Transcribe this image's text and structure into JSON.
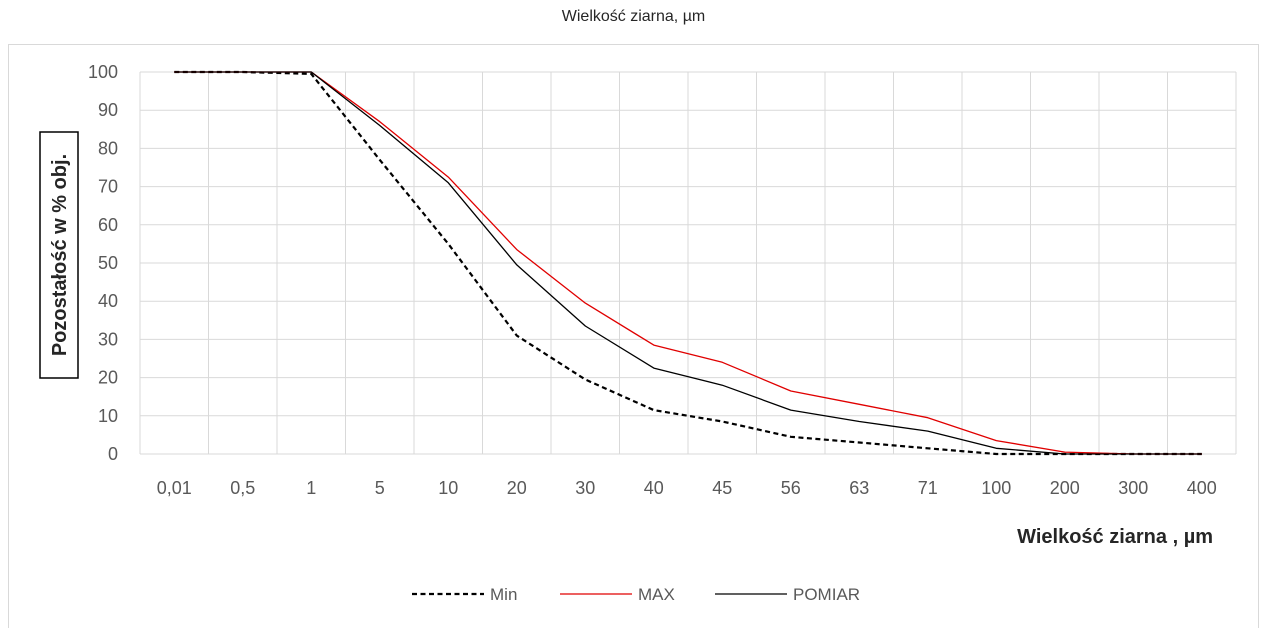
{
  "page_title": "Wielkość ziarna, µm",
  "chart_data": {
    "type": "line",
    "title": "Wielkość ziarna, µm",
    "xlabel": "Wielkość ziarna , µm",
    "ylabel": "Pozostałość w % obj.",
    "categories": [
      "0,01",
      "0,5",
      "1",
      "5",
      "10",
      "20",
      "30",
      "40",
      "45",
      "56",
      "63",
      "71",
      "100",
      "200",
      "300",
      "400"
    ],
    "ylim": [
      0,
      100
    ],
    "yticks": [
      0,
      10,
      20,
      30,
      40,
      50,
      60,
      70,
      80,
      90,
      100
    ],
    "grid": true,
    "legend_position": "bottom",
    "series": [
      {
        "name": "Min",
        "color": "#000000",
        "dash": "dashed",
        "values": [
          100,
          100,
          99.5,
          77,
          55,
          31,
          19.5,
          11.5,
          8.5,
          4.5,
          3,
          1.5,
          0,
          0,
          0,
          0
        ]
      },
      {
        "name": "MAX",
        "color": "#e00000",
        "dash": "solid",
        "values": [
          100,
          100,
          100,
          87,
          72.5,
          53.5,
          39.5,
          28.5,
          24,
          16.5,
          13,
          9.5,
          3.5,
          0.5,
          0,
          0
        ]
      },
      {
        "name": "POMIAR",
        "color": "#000000",
        "dash": "solid",
        "values": [
          100,
          100,
          100,
          86,
          71,
          49.5,
          33.5,
          22.5,
          18,
          11.5,
          8.5,
          6,
          1.5,
          0,
          0,
          0
        ]
      }
    ]
  }
}
